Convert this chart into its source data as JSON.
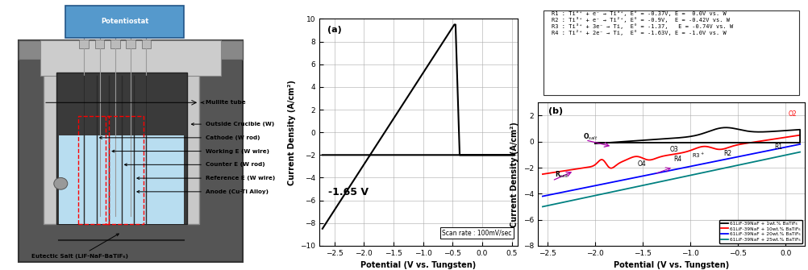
{
  "fig_width": 10.03,
  "fig_height": 3.35,
  "dpi": 100,
  "plot_a": {
    "title": "(a)",
    "xlabel": "Potential (V vs. Tungsten)",
    "ylabel": "Current Density (A/cm²)",
    "xlim": [
      -2.75,
      0.6
    ],
    "ylim": [
      -10,
      10
    ],
    "xticks": [
      -2.5,
      -2.0,
      -1.5,
      -1.0,
      -0.5,
      0.0,
      0.5
    ],
    "yticks": [
      -10,
      -8,
      -6,
      -4,
      -2,
      0,
      2,
      4,
      6,
      8,
      10
    ],
    "annotation": "-1.65 V",
    "scan_rate_text": "Scan rate : 100mV/sec"
  },
  "plot_b": {
    "title": "(b)",
    "xlabel": "Potential (V vs. Tungsten)",
    "ylabel": "Current Density (A/cm²)",
    "xlim": [
      -2.6,
      0.2
    ],
    "ylim": [
      -8,
      3
    ],
    "xticks": [
      -2.5,
      -2.0,
      -1.5,
      -1.0,
      -0.5,
      0.0
    ],
    "legend": [
      {
        "label": "61LiF-39NaF + 1wt.% BaTiF₆",
        "color": "#000000"
      },
      {
        "label": "61LiF-39NaF + 10wt.% BaTiF₆",
        "color": "#ff0000"
      },
      {
        "label": "61LiF-39NaF + 20wt.% BaTiF₆",
        "color": "#0000ff"
      },
      {
        "label": "61LiF-39NaF + 25wt.% BaTiF₆",
        "color": "#008080"
      }
    ],
    "textbox_lines": [
      "R1 : Ti⁴⁺ + e⁻ → Ti³⁺, E° = -0.37V, E =  0.0V vs. W",
      "R2 : Ti³⁺ + e⁻ → Ti²⁺, E° = -0.9V,  E = -0.42V vs. W",
      "R3 : Ti³⁺ + 3e⁻ → Ti,  E° = -1.37,   E = -0.74V vs. W",
      "R4 : Ti²⁺ + 2e⁻ → Ti,  E° = -1.63V, E = -1.0V vs. W"
    ]
  },
  "schematic": {
    "labels": [
      "Mullite tube",
      "Outside Crucible (W)",
      "Cathode (W rod)",
      "Working E (W wire)",
      "Counter E (W rod)",
      "Reference E (W wire)",
      "Anode (Cu-Ti Alloy)",
      "Eutectic Salt (LiF-NaF-BaTiF₆)"
    ]
  }
}
